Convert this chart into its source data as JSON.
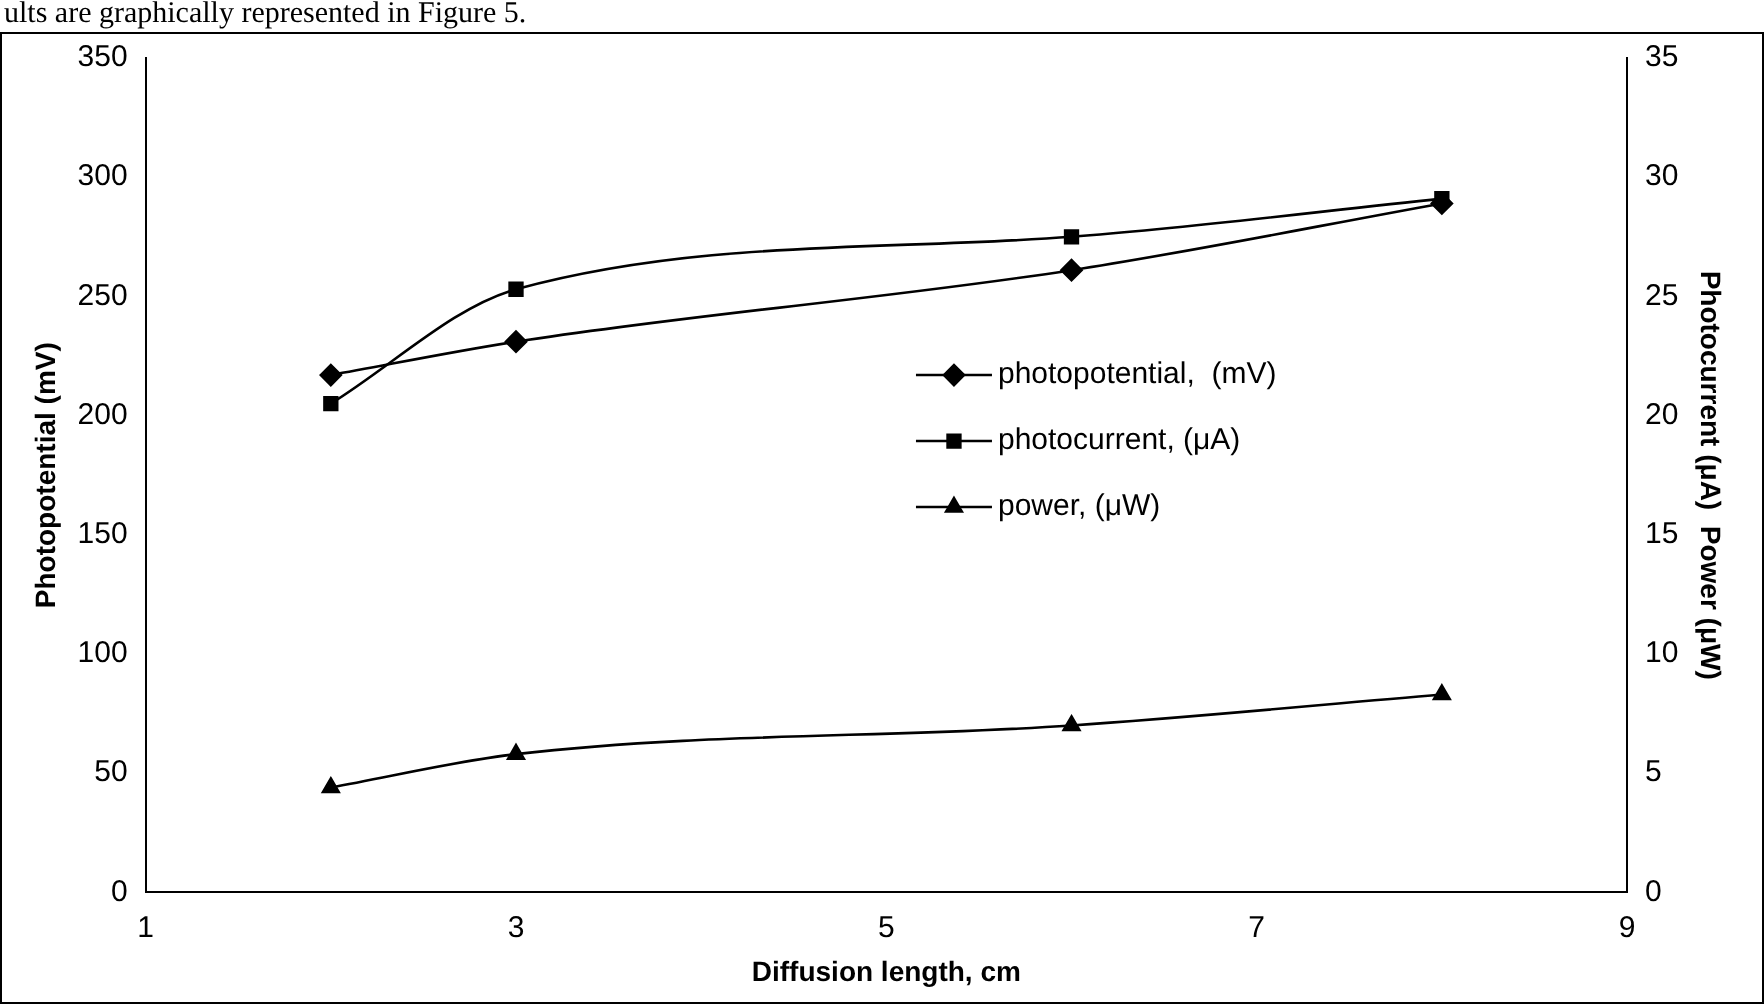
{
  "chart_data": {
    "type": "line",
    "xlabel": "Diffusion length, cm",
    "ylabel": "Photopotential (mV)",
    "y2label": "Photocurrent (μA)  Power (μW)",
    "annotations": [
      "ults are graphically represented in Figure 5."
    ],
    "x": [
      2,
      3,
      6,
      8
    ],
    "series": [
      {
        "name": "photopotential,  (mV)",
        "color": "#000000",
        "marker": "diamond",
        "values": [
          217,
          231,
          261,
          289
        ]
      },
      {
        "name": "photocurrent, (μA)",
        "color": "#000000",
        "marker": "square",
        "axis": "y2",
        "values": [
          20.5,
          25.3,
          27.5,
          29.1
        ]
      },
      {
        "name": "power, (μW)",
        "color": "#000000",
        "marker": "triangle",
        "axis": "y2",
        "values": [
          4.4,
          5.8,
          7.0,
          8.3
        ]
      }
    ],
    "xlim": [
      1,
      9
    ],
    "xticks": [
      1,
      3,
      5,
      7,
      9
    ],
    "ylim": [
      0,
      350
    ],
    "yticks": [
      0,
      50,
      100,
      150,
      200,
      250,
      300,
      350
    ],
    "y2lim": [
      0,
      35
    ],
    "y2ticks": [
      0,
      5,
      10,
      15,
      20,
      25,
      30,
      35
    ],
    "grid": false,
    "legend": "right",
    "line_style": "solid"
  }
}
